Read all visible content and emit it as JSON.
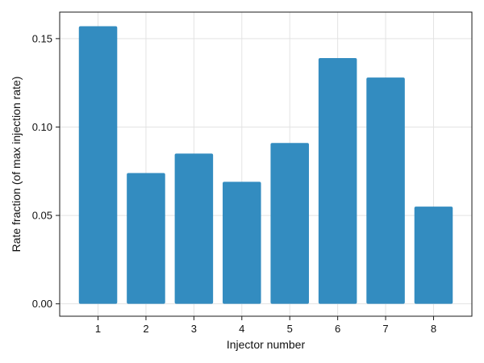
{
  "chart_data": {
    "type": "bar",
    "categories": [
      "1",
      "2",
      "3",
      "4",
      "5",
      "6",
      "7",
      "8"
    ],
    "values": [
      0.157,
      0.074,
      0.085,
      0.069,
      0.091,
      0.139,
      0.128,
      0.055
    ],
    "title": "",
    "xlabel": "Injector number",
    "ylabel": "Rate fraction (of max injection rate)",
    "ylim": [
      -0.007,
      0.165
    ],
    "xlim": [
      0.2,
      8.8
    ],
    "yticks": [
      0.0,
      0.05,
      0.1,
      0.15
    ],
    "ytick_labels": [
      "0.00",
      "0.05",
      "0.10",
      "0.15"
    ],
    "grid": true,
    "bar_color": "#2f8abf"
  }
}
